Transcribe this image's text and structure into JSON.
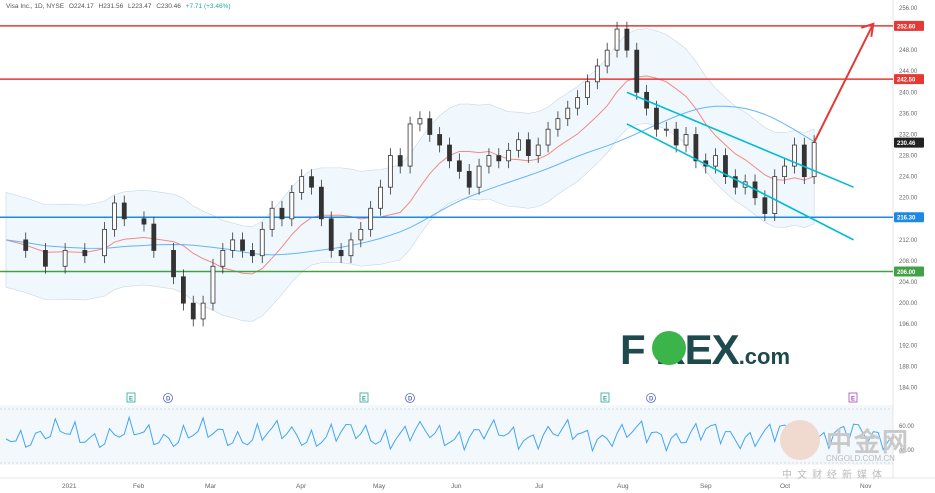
{
  "header": {
    "symbol": "Visa Inc., 1D, NYSE",
    "open": "O224.17",
    "high": "H231.56",
    "low": "L223.47",
    "close": "C230.46",
    "change": "+7.71 (+3.46%)"
  },
  "colors": {
    "up": "#26a69a",
    "down": "#ef5350",
    "candle": "#333333",
    "bb_mid": "#f28b82",
    "bb_fill": "#e3f2fd",
    "ma": "#64b5f6",
    "resistance": "#e53935",
    "support": "#1e88e5",
    "green_line": "#43a047",
    "channel": "#00bcd4",
    "arrow": "#e53935",
    "rsi": "#42a5f5"
  },
  "chart_data": {
    "type": "candlestick",
    "title": "Visa Inc., 1D, NYSE",
    "ylim": [
      182,
      256
    ],
    "y_ticks": [
      184,
      188,
      192,
      196,
      200,
      204,
      208,
      212,
      216,
      220,
      224,
      228,
      232,
      236,
      240,
      244,
      248,
      252,
      256
    ],
    "x_ticks": [
      "2021",
      "Feb",
      "Mar",
      "Apr",
      "May",
      "Jun",
      "Jul",
      "Aug",
      "Sep",
      "Oct",
      "Nov"
    ],
    "key_prices": [
      {
        "label": "252.60",
        "value": 252.6,
        "color": "#e53935"
      },
      {
        "label": "242.50",
        "value": 242.5,
        "color": "#e53935"
      },
      {
        "label": "230.46",
        "value": 230.46,
        "color": "#222222"
      },
      {
        "label": "216.30",
        "value": 216.3,
        "color": "#1e88e5"
      },
      {
        "label": "206.00",
        "value": 206.0,
        "color": "#43a047"
      }
    ],
    "close_path": [
      [
        0,
        212
      ],
      [
        4,
        210
      ],
      [
        8,
        207
      ],
      [
        12,
        210
      ],
      [
        16,
        209
      ],
      [
        20,
        214
      ],
      [
        22,
        219
      ],
      [
        24,
        216
      ],
      [
        28,
        215
      ],
      [
        30,
        210
      ],
      [
        34,
        205
      ],
      [
        36,
        200
      ],
      [
        38,
        197
      ],
      [
        40,
        200
      ],
      [
        42,
        207
      ],
      [
        44,
        210
      ],
      [
        46,
        212
      ],
      [
        48,
        210
      ],
      [
        50,
        209
      ],
      [
        52,
        214
      ],
      [
        54,
        218
      ],
      [
        56,
        216
      ],
      [
        58,
        221
      ],
      [
        60,
        224
      ],
      [
        62,
        222
      ],
      [
        64,
        216
      ],
      [
        66,
        210
      ],
      [
        68,
        209
      ],
      [
        70,
        212
      ],
      [
        72,
        214
      ],
      [
        74,
        218
      ],
      [
        76,
        222
      ],
      [
        78,
        228
      ],
      [
        80,
        226
      ],
      [
        82,
        234
      ],
      [
        84,
        235
      ],
      [
        86,
        232
      ],
      [
        88,
        230
      ],
      [
        90,
        227
      ],
      [
        92,
        225
      ],
      [
        94,
        222
      ],
      [
        96,
        226
      ],
      [
        98,
        228
      ],
      [
        100,
        227
      ],
      [
        102,
        229
      ],
      [
        104,
        231
      ],
      [
        106,
        228
      ],
      [
        108,
        230
      ],
      [
        110,
        233
      ],
      [
        112,
        235
      ],
      [
        114,
        237
      ],
      [
        116,
        239
      ],
      [
        118,
        242
      ],
      [
        120,
        245
      ],
      [
        122,
        248
      ],
      [
        124,
        252
      ],
      [
        126,
        248
      ],
      [
        128,
        240
      ],
      [
        130,
        237
      ],
      [
        132,
        233
      ],
      [
        134,
        233
      ],
      [
        136,
        230
      ],
      [
        138,
        232
      ],
      [
        140,
        227
      ],
      [
        142,
        226
      ],
      [
        144,
        228
      ],
      [
        146,
        224
      ],
      [
        148,
        222
      ],
      [
        150,
        223
      ],
      [
        152,
        220
      ],
      [
        154,
        217
      ],
      [
        156,
        224
      ],
      [
        158,
        226
      ],
      [
        160,
        230
      ],
      [
        162,
        224
      ],
      [
        164,
        230.46
      ]
    ],
    "annotations": [
      {
        "type": "hline",
        "value": 252.6,
        "label": "resistance"
      },
      {
        "type": "hline",
        "value": 242.5,
        "label": "resistance"
      },
      {
        "type": "hline",
        "value": 216.3,
        "label": "support"
      },
      {
        "type": "hline",
        "value": 206.0,
        "label": "support"
      },
      {
        "type": "channel",
        "from": [
          126,
          240
        ],
        "to": [
          164,
          222
        ]
      },
      {
        "type": "arrow",
        "from": [
          164,
          230.5
        ],
        "to": [
          176,
          253
        ]
      }
    ],
    "events": [
      "E",
      "D",
      "E",
      "D",
      "E",
      "D",
      "E"
    ],
    "rsi_ticks": [
      "60.00",
      "40.00"
    ]
  },
  "watermarks": {
    "forex_main": "F  REX",
    "forex_com": ".com",
    "cn_main": "中金网",
    "cn_url": "CNGOLD.COM.CN",
    "cn_sub": "中文财经新媒体"
  }
}
